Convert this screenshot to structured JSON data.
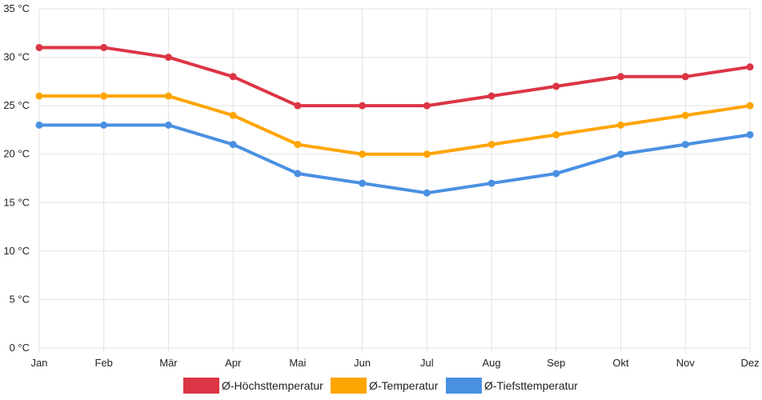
{
  "chart_data": {
    "type": "line",
    "title": "",
    "xlabel": "",
    "ylabel": "",
    "y_unit": " °C",
    "ylim": [
      0,
      35
    ],
    "y_ticks": [
      0,
      5,
      10,
      15,
      20,
      25,
      30,
      35
    ],
    "grid": true,
    "legend_position": "bottom",
    "categories": [
      "Jan",
      "Feb",
      "Mär",
      "Apr",
      "Mai",
      "Jun",
      "Jul",
      "Aug",
      "Sep",
      "Okt",
      "Nov",
      "Dez"
    ],
    "series": [
      {
        "name": "Ø-Höchsttemperatur",
        "color": "#dc3545",
        "values": [
          31,
          31,
          30,
          28,
          25,
          25,
          25,
          26,
          27,
          28,
          28,
          29
        ]
      },
      {
        "name": "Ø-Temperatur",
        "color": "#ffa500",
        "values": [
          26,
          26,
          26,
          24,
          21,
          20,
          20,
          21,
          22,
          23,
          24,
          25
        ]
      },
      {
        "name": "Ø-Tiefsttemperatur",
        "color": "#4a90e2",
        "values": [
          23,
          23,
          23,
          21,
          18,
          17,
          16,
          17,
          18,
          20,
          21,
          22
        ]
      }
    ]
  }
}
